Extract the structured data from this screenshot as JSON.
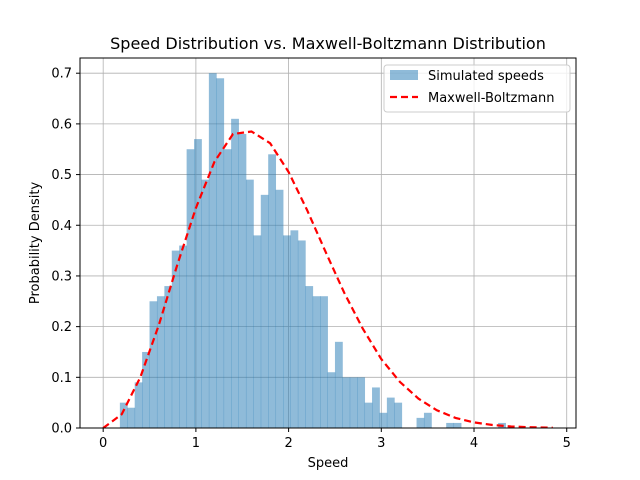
{
  "chart_data": {
    "type": "bar",
    "title": "Speed Distribution vs. Maxwell-Boltzmann Distribution",
    "xlabel": "Speed",
    "ylabel": "Probability Density",
    "xlim": [
      -0.25,
      5.1
    ],
    "ylim": [
      0,
      0.73
    ],
    "xticks": [
      0,
      1,
      2,
      3,
      4,
      5
    ],
    "yticks": [
      0.0,
      0.1,
      0.2,
      0.3,
      0.4,
      0.5,
      0.6,
      0.7
    ],
    "xtick_labels": [
      "0",
      "1",
      "2",
      "3",
      "4",
      "5"
    ],
    "ytick_labels": [
      "0.0",
      "0.1",
      "0.2",
      "0.3",
      "0.4",
      "0.5",
      "0.6",
      "0.7"
    ],
    "grid": true,
    "legend_position": "top-right",
    "colors": {
      "histogram": "#1f77b4",
      "histogram_opacity": 0.5,
      "curve": "#ff0000"
    },
    "histogram": {
      "name": "Simulated speeds",
      "bin_edges": [
        0.18,
        0.26,
        0.34,
        0.42,
        0.5,
        0.58,
        0.66,
        0.74,
        0.82,
        0.9,
        0.98,
        1.06,
        1.14,
        1.22,
        1.3,
        1.38,
        1.46,
        1.54,
        1.62,
        1.7,
        1.78,
        1.86,
        1.94,
        2.02,
        2.1,
        2.18,
        2.26,
        2.34,
        2.42,
        2.5,
        2.58,
        2.66,
        2.74,
        2.82,
        2.9,
        2.98,
        3.06,
        3.14,
        3.22,
        3.3,
        3.38,
        3.46,
        3.54,
        3.62,
        3.7,
        3.78,
        3.86,
        3.94,
        4.02,
        4.1,
        4.18,
        4.26,
        4.34,
        4.42
      ],
      "values": [
        0.05,
        0.04,
        0.09,
        0.15,
        0.25,
        0.26,
        0.28,
        0.35,
        0.36,
        0.55,
        0.57,
        0.49,
        0.7,
        0.69,
        0.55,
        0.61,
        0.58,
        0.49,
        0.38,
        0.46,
        0.54,
        0.47,
        0.38,
        0.39,
        0.37,
        0.28,
        0.26,
        0.26,
        0.11,
        0.17,
        0.1,
        0.1,
        0.1,
        0.05,
        0.08,
        0.03,
        0.06,
        0.05,
        0.0,
        0.0,
        0.02,
        0.03,
        0.0,
        0.0,
        0.01,
        0.01,
        0.0,
        0.0,
        0.0,
        0.0,
        0.0,
        0.01,
        0.0
      ]
    },
    "curve": {
      "name": "Maxwell-Boltzmann",
      "style": "dashed",
      "x": [
        0.0,
        0.2,
        0.4,
        0.6,
        0.8,
        1.0,
        1.2,
        1.4,
        1.6,
        1.8,
        2.0,
        2.2,
        2.4,
        2.6,
        2.8,
        3.0,
        3.2,
        3.4,
        3.6,
        3.8,
        4.0,
        4.2,
        4.4,
        4.6,
        4.8,
        4.85
      ],
      "y": [
        0.0,
        0.027,
        0.1,
        0.203,
        0.322,
        0.434,
        0.525,
        0.58,
        0.585,
        0.562,
        0.505,
        0.43,
        0.347,
        0.267,
        0.196,
        0.136,
        0.091,
        0.058,
        0.035,
        0.02,
        0.011,
        0.006,
        0.003,
        0.0015,
        0.0007,
        0.0005
      ]
    }
  }
}
